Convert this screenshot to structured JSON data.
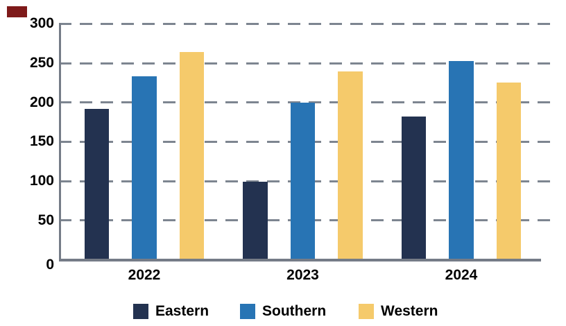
{
  "marker": {
    "name": "red-marker",
    "color": "#7E1A1A"
  },
  "chart_data": {
    "type": "bar",
    "title": "",
    "xlabel": "",
    "ylabel": "",
    "categories": [
      "2022",
      "2023",
      "2024"
    ],
    "series": [
      {
        "name": "Eastern",
        "color": "#233250",
        "values": [
          192,
          99,
          182
        ]
      },
      {
        "name": "Southern",
        "color": "#2874B4",
        "values": [
          233,
          200,
          253
        ]
      },
      {
        "name": "Western",
        "color": "#F5CA6B",
        "values": [
          264,
          239,
          225
        ]
      }
    ],
    "ylim": [
      0,
      300
    ],
    "yticks": [
      0,
      50,
      100,
      150,
      200,
      250,
      300
    ],
    "grid": "horizontal-dashed",
    "grid_color": "#7D8590",
    "axis_color": "#757C87",
    "tick_label_color": "#000000",
    "legend_position": "bottom"
  }
}
